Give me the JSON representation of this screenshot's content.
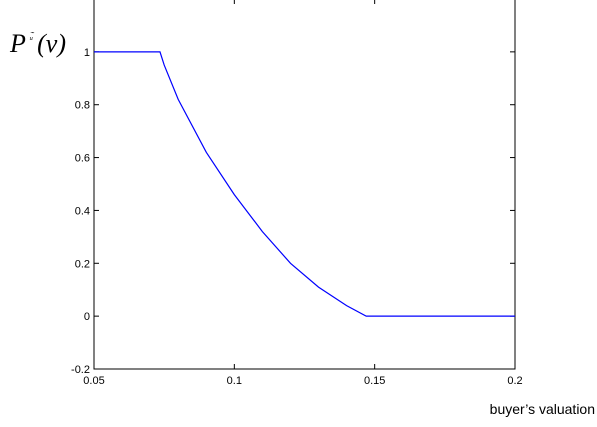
{
  "chart_data": {
    "type": "line",
    "title": "",
    "xlabel": "buyer’s valuation",
    "ylabel": {
      "main": "P",
      "sup": "̃ᵤ",
      "arg": "(v)"
    },
    "xlim": [
      0.05,
      0.2
    ],
    "ylim": [
      -0.2,
      1.2
    ],
    "xticks": [
      0.05,
      0.1,
      0.15,
      0.2
    ],
    "xtick_labels": [
      "0.05",
      "0.1",
      "0.15",
      "0.2"
    ],
    "yticks": [
      -0.2,
      0,
      0.2,
      0.4,
      0.6,
      0.8,
      1
    ],
    "ytick_labels": [
      "-0.2",
      "0",
      "0.2",
      "0.4",
      "0.6",
      "0.8",
      "1"
    ],
    "grid": false,
    "series": [
      {
        "color": "#0000ff",
        "x": [
          0.05,
          0.0735,
          0.075,
          0.08,
          0.09,
          0.1,
          0.11,
          0.12,
          0.13,
          0.14,
          0.147,
          0.15,
          0.2
        ],
        "y": [
          1.0,
          1.0,
          0.95,
          0.82,
          0.62,
          0.46,
          0.32,
          0.2,
          0.11,
          0.04,
          0.0,
          0.0,
          0.0
        ]
      }
    ]
  }
}
